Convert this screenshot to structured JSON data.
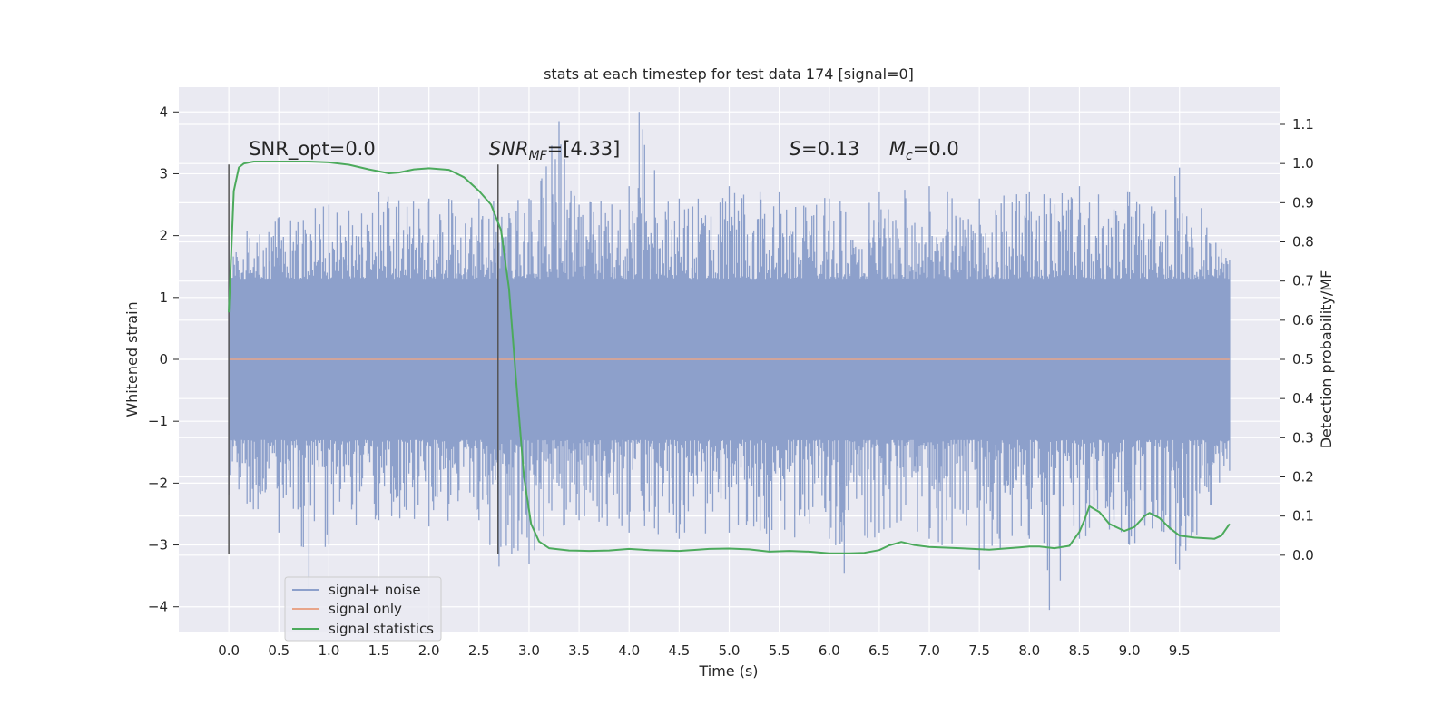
{
  "chart_data": {
    "type": "line",
    "title": "stats at each timestep for test data 174 [signal=0]",
    "xlabel": "Time (s)",
    "ylabel": "Whitened strain",
    "y2label": "Detection probability/MF",
    "xlim": [
      -0.5,
      10.5
    ],
    "ylim": [
      -4.4,
      4.4
    ],
    "y2lim": [
      -0.195,
      1.195
    ],
    "x_ticks": [
      "0.0",
      "0.5",
      "1.0",
      "1.5",
      "2.0",
      "2.5",
      "3.0",
      "3.5",
      "4.0",
      "4.5",
      "5.0",
      "5.5",
      "6.0",
      "6.5",
      "7.0",
      "7.5",
      "8.0",
      "8.5",
      "9.0",
      "9.5"
    ],
    "y_ticks": [
      "4",
      "3",
      "2",
      "1",
      "0",
      "−1",
      "−2",
      "−3",
      "−4"
    ],
    "y2_ticks": [
      "1.1",
      "1.0",
      "0.9",
      "0.8",
      "0.7",
      "0.6",
      "0.5",
      "0.4",
      "0.3",
      "0.2",
      "0.1",
      "0.0"
    ],
    "grid": true,
    "legend_position": "lower-left",
    "colors": {
      "noise": "#8da0cb",
      "signal": "#e8a58a",
      "stats": "#4caa5c",
      "background": "#eaeaf2",
      "grid": "#ffffff",
      "vline": "#555555"
    },
    "series": [
      {
        "name": "signal+ noise",
        "axis": "left",
        "kind": "noise-envelope",
        "x_range": [
          0,
          10
        ],
        "typical_amplitude": 1.3,
        "upper_envelope": [
          [
            0,
            2.0
          ],
          [
            0.5,
            2.3
          ],
          [
            1,
            2.5
          ],
          [
            1.5,
            2.7
          ],
          [
            2,
            2.6
          ],
          [
            2.5,
            2.6
          ],
          [
            3,
            2.6
          ],
          [
            3.3,
            3.85
          ],
          [
            3.5,
            2.5
          ],
          [
            4,
            2.8
          ],
          [
            4.1,
            4.0
          ],
          [
            4.5,
            2.6
          ],
          [
            5,
            2.8
          ],
          [
            5.5,
            2.7
          ],
          [
            6,
            2.6
          ],
          [
            6.5,
            2.7
          ],
          [
            7,
            2.8
          ],
          [
            7.5,
            2.6
          ],
          [
            8,
            2.7
          ],
          [
            8.5,
            2.8
          ],
          [
            9,
            2.7
          ],
          [
            9.5,
            3.1
          ],
          [
            10,
            1.6
          ]
        ],
        "lower_envelope": [
          [
            0,
            -2.2
          ],
          [
            0.5,
            -2.8
          ],
          [
            0.8,
            -3.7
          ],
          [
            1,
            -3.0
          ],
          [
            1.5,
            -2.6
          ],
          [
            2,
            -2.7
          ],
          [
            2.5,
            -2.6
          ],
          [
            2.7,
            -3.35
          ],
          [
            3,
            -3.3
          ],
          [
            3.5,
            -2.6
          ],
          [
            4,
            -2.8
          ],
          [
            4.5,
            -2.9
          ],
          [
            5,
            -2.8
          ],
          [
            5.4,
            -3.1
          ],
          [
            6,
            -2.9
          ],
          [
            6.15,
            -3.45
          ],
          [
            6.5,
            -2.8
          ],
          [
            7,
            -2.9
          ],
          [
            7.5,
            -3.4
          ],
          [
            8,
            -2.9
          ],
          [
            8.2,
            -4.05
          ],
          [
            8.5,
            -2.9
          ],
          [
            9,
            -3.0
          ],
          [
            9.5,
            -3.4
          ],
          [
            10,
            -1.8
          ]
        ]
      },
      {
        "name": "signal only",
        "axis": "left",
        "x": [
          0,
          10
        ],
        "y": [
          0,
          0
        ]
      },
      {
        "name": "signal statistics",
        "axis": "right",
        "x": [
          0,
          0.05,
          0.1,
          0.15,
          0.25,
          0.4,
          0.6,
          0.8,
          1.0,
          1.2,
          1.4,
          1.6,
          1.7,
          1.85,
          2.0,
          2.2,
          2.35,
          2.5,
          2.62,
          2.72,
          2.8,
          2.87,
          2.95,
          3.02,
          3.1,
          3.2,
          3.4,
          3.6,
          3.8,
          4.0,
          4.2,
          4.5,
          4.8,
          5.0,
          5.2,
          5.4,
          5.6,
          5.8,
          6.0,
          6.2,
          6.35,
          6.5,
          6.6,
          6.72,
          6.85,
          7.0,
          7.3,
          7.6,
          7.9,
          8.0,
          8.1,
          8.25,
          8.4,
          8.5,
          8.55,
          8.6,
          8.7,
          8.8,
          8.95,
          9.05,
          9.15,
          9.2,
          9.3,
          9.4,
          9.5,
          9.65,
          9.85,
          9.92,
          10.0
        ],
        "y": [
          0.62,
          0.93,
          0.99,
          1.0,
          1.005,
          1.005,
          1.005,
          1.005,
          1.003,
          0.997,
          0.985,
          0.975,
          0.977,
          0.985,
          0.988,
          0.984,
          0.965,
          0.93,
          0.895,
          0.83,
          0.68,
          0.45,
          0.2,
          0.08,
          0.035,
          0.018,
          0.012,
          0.011,
          0.012,
          0.016,
          0.013,
          0.011,
          0.016,
          0.017,
          0.015,
          0.009,
          0.011,
          0.009,
          0.005,
          0.005,
          0.006,
          0.013,
          0.025,
          0.034,
          0.026,
          0.021,
          0.018,
          0.014,
          0.02,
          0.022,
          0.022,
          0.018,
          0.024,
          0.06,
          0.09,
          0.125,
          0.11,
          0.08,
          0.062,
          0.072,
          0.1,
          0.108,
          0.095,
          0.07,
          0.05,
          0.045,
          0.042,
          0.05,
          0.08
        ]
      }
    ],
    "vlines": [
      {
        "x": 0.0,
        "y": [
          -3.15,
          3.15
        ],
        "axis": "left"
      },
      {
        "x": 2.69,
        "y": [
          -3.15,
          3.15
        ],
        "axis": "left"
      }
    ],
    "annotations": [
      {
        "text": "SNR_opt=0.0",
        "x": 0.2,
        "y": 3.3,
        "axis": "left"
      },
      {
        "text": "SNR",
        "sub": "MF",
        "tail": "=[4.33]",
        "italic": true,
        "x": 2.6,
        "y": 3.3,
        "axis": "left"
      },
      {
        "text": "S",
        "tail": "=0.13",
        "italic": true,
        "x": 5.6,
        "y": 3.3,
        "axis": "left"
      },
      {
        "text": "M",
        "sub": "c",
        "tail": "=0.0",
        "italic": true,
        "x": 6.6,
        "y": 3.3,
        "axis": "left"
      }
    ]
  }
}
